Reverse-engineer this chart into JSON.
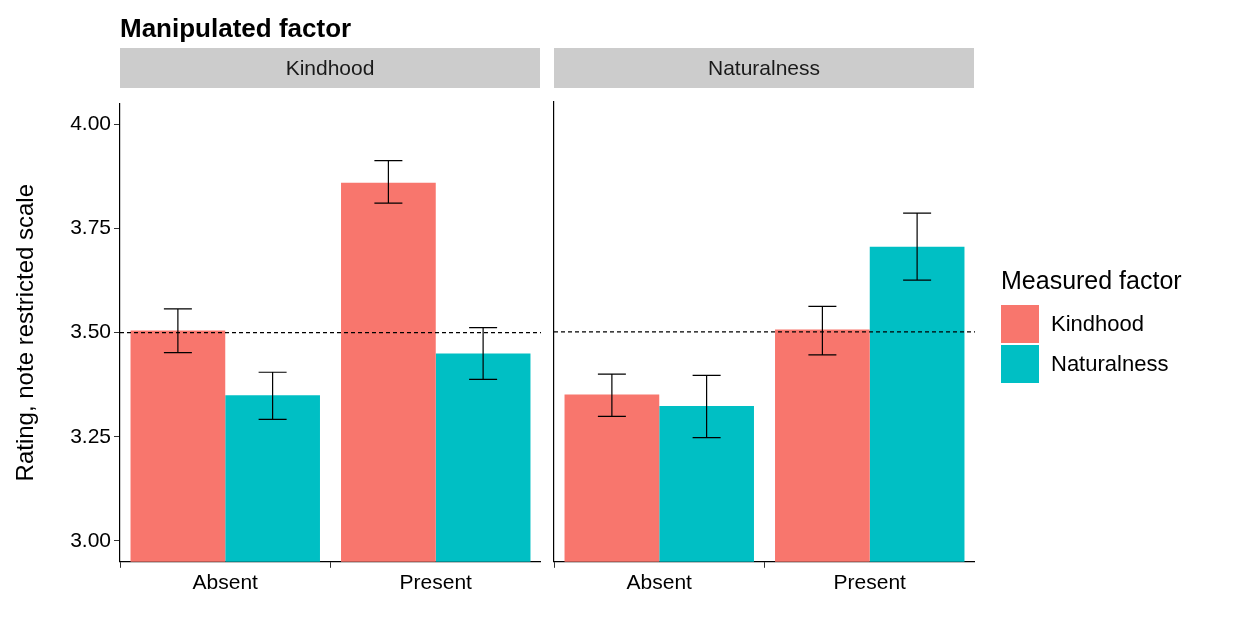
{
  "chart_data": [
    {
      "type": "bar",
      "title": "Manipulated factor",
      "subtitle": "Kindhood",
      "ylabel": "Rating, note restricted scale",
      "categories": [
        "Absent",
        "Present"
      ],
      "series": [
        {
          "color": "#f8766d",
          "values": [
            3.505,
            3.86
          ],
          "errors": [
            [
              3.452,
              3.557
            ],
            [
              3.811,
              3.913
            ]
          ]
        },
        {
          "color": "#00bfc4",
          "values": [
            3.35,
            3.45
          ],
          "errors": [
            [
              3.292,
              3.405
            ],
            [
              3.388,
              3.512
            ]
          ]
        }
      ],
      "ylim": [
        2.95,
        4.05
      ],
      "yticks": [
        {
          "value": 3,
          "label": "3.00"
        },
        {
          "value": 3.25,
          "label": "3.25"
        },
        {
          "value": 3.5,
          "label": "3.50"
        },
        {
          "value": 3.75,
          "label": "3.75"
        },
        {
          "value": 4,
          "label": "4.00"
        }
      ],
      "ref_lines": [
        {
          "axis": "y",
          "value": 3.5,
          "line_style": "dashed"
        }
      ]
    },
    {
      "type": "bar",
      "subtitle": "Naturalness",
      "categories": [
        "Absent",
        "Present"
      ],
      "legend": "right",
      "legend_title": "Measured factor",
      "series": [
        {
          "name": "Kindhood",
          "color": "#f8766d",
          "values": [
            3.35,
            3.506
          ],
          "errors": [
            [
              3.298,
              3.399
            ],
            [
              3.445,
              3.561
            ]
          ]
        },
        {
          "name": "Naturalness",
          "color": "#00bfc4",
          "values": [
            3.323,
            3.704
          ],
          "errors": [
            [
              3.247,
              3.396
            ],
            [
              3.624,
              3.784
            ]
          ]
        }
      ],
      "ylim": [
        2.95,
        4.05
      ],
      "tick_labels": "x",
      "ref_lines": [
        {
          "axis": "y",
          "value": 3.5,
          "line_style": "dashed"
        }
      ]
    }
  ]
}
